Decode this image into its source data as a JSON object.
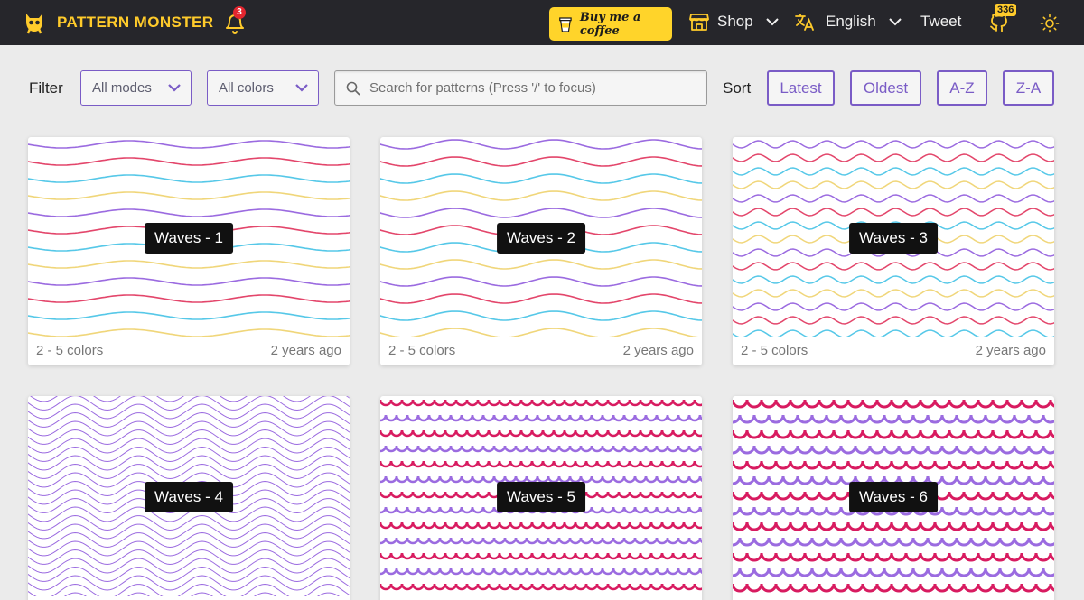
{
  "brand": {
    "name": "PATTERN MONSTER"
  },
  "notifications": {
    "count": "3"
  },
  "coffee": {
    "label": "Buy me a coffee"
  },
  "nav": {
    "shop": "Shop",
    "language": "English",
    "tweet": "Tweet",
    "stars": "336"
  },
  "toolbar": {
    "filter_label": "Filter",
    "mode_select": "All modes",
    "color_select": "All colors",
    "search_placeholder": "Search for patterns (Press '/' to focus)",
    "sort_label": "Sort",
    "sort_options": [
      "Latest",
      "Oldest",
      "A-Z",
      "Z-A"
    ]
  },
  "colors": {
    "purple": "#9b6be0",
    "red": "#e3466b",
    "cyan": "#56c8e8",
    "yellow": "#f0d67a",
    "magenta": "#d81b60",
    "accent": "#7a5cc6",
    "brand": "#ffcb2b"
  },
  "cards": [
    {
      "title": "Waves - 1",
      "colors": "2 - 5 colors",
      "age": "2 years ago"
    },
    {
      "title": "Waves - 2",
      "colors": "2 - 5 colors",
      "age": "2 years ago"
    },
    {
      "title": "Waves - 3",
      "colors": "2 - 5 colors",
      "age": "2 years ago"
    },
    {
      "title": "Waves - 4"
    },
    {
      "title": "Waves - 5"
    },
    {
      "title": "Waves - 6"
    }
  ]
}
